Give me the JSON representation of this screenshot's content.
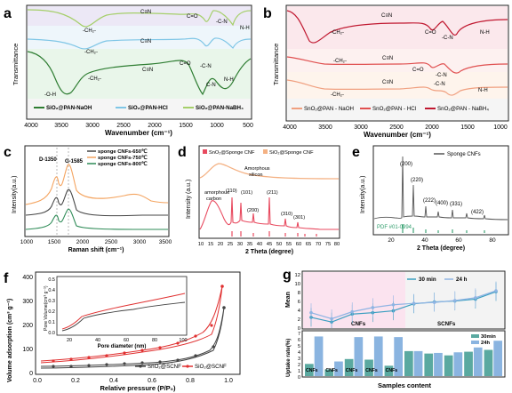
{
  "panel_a": {
    "letter": "a",
    "ylabel": "Transmittance",
    "xlabel": "Wavenumber (cm⁻¹)",
    "xticks": [
      "4000",
      "3500",
      "3000",
      "2500",
      "2000",
      "1500",
      "1000",
      "500"
    ],
    "annot": [
      "-CH₂-",
      "C≡N",
      "C=O",
      "-C-N",
      "N-H",
      "-CH₂-",
      "C≡N",
      "-CH₂-",
      "C≡N",
      "C=O",
      "-C-N",
      "C-N",
      "N-H",
      "-O-H"
    ],
    "legend": [
      "SiO₂@PAN-NaOH",
      "SiO₂@PAN-HCl",
      "SiO₂@PAN-NaBH₄"
    ],
    "colors": [
      "#2e7d32",
      "#7fc6e6",
      "#a5cf6a"
    ]
  },
  "panel_b": {
    "letter": "b",
    "ylabel": "Transmittance",
    "xlabel": "Wavenumber (cm⁻¹)",
    "xticks": [
      "4000",
      "3500",
      "3000",
      "2500",
      "2000",
      "1500",
      "1000"
    ],
    "annot": [
      "-CH₂-",
      "C≡N",
      "C=O",
      "-C-N",
      "N-H",
      "-CH₂-",
      "C≡N",
      "C=O",
      "-C-N",
      "-CH₂-",
      "C≡N",
      "-C-N",
      "N-H"
    ],
    "legend": [
      "SnO₂@PAN - NaOH",
      "SnO₂@PAN - HCl",
      "SnO₂@PAN - NaBH₄"
    ],
    "colors": [
      "#f0a080",
      "#e05050",
      "#c01830"
    ]
  },
  "panel_c": {
    "letter": "c",
    "ylabel": "Intensity(a.u.)",
    "xlabel": "Raman shift (cm⁻¹)",
    "xticks": [
      "1000",
      "1500",
      "2000",
      "2500",
      "3000",
      "3500"
    ],
    "peaks": [
      "D-1350",
      "G-1585"
    ],
    "legend": [
      "sponge  CNFs-650℃",
      "sponge  CNFs-750℃",
      "sponge  CNFs-800℃"
    ],
    "colors": [
      "#444444",
      "#f4a460",
      "#2e8b57"
    ]
  },
  "panel_d": {
    "letter": "d",
    "ylabel": "Intensity (a.u.)",
    "xlabel": "2 Theta (degree)",
    "xticks": [
      "10",
      "15",
      "20",
      "25",
      "30",
      "35",
      "40",
      "45",
      "50",
      "55",
      "60",
      "65",
      "70",
      "75",
      "80"
    ],
    "legend": [
      "SnO₂@Sponge CNF",
      "SiO₂@Sponge CNF"
    ],
    "colors": [
      "#e84a5f",
      "#f4b183"
    ],
    "labels": [
      "Amorphous",
      "silicon",
      "amorphous",
      "carbon",
      "(110)",
      "(101)",
      "(200)",
      "(211)",
      "(310)",
      "(301)"
    ]
  },
  "panel_e": {
    "letter": "e",
    "ylabel": "Intensity(a.u.)",
    "xlabel": "2 Theta (degree)",
    "xticks": [
      "20",
      "40",
      "60",
      "80"
    ],
    "legend": [
      "Sponge CNFs"
    ],
    "pdf": "PDF #01-0994",
    "peaks": [
      "(200)",
      "(220)",
      "(222)",
      "(400)",
      "(331)",
      "(422)"
    ],
    "colors": [
      "#555555",
      "#2e9c6a"
    ]
  },
  "panel_f": {
    "letter": "f",
    "ylabel": "Volume adsorption (cm³ g⁻¹)",
    "xlabel": "Relative pressure (P/P₀)",
    "xticks": [
      "0.0",
      "0.2",
      "0.4",
      "0.6",
      "0.8",
      "1.0"
    ],
    "yticks": [
      "0",
      "100",
      "200",
      "300",
      "400"
    ],
    "legend": [
      "SnO₂@SCNF",
      "SiO₂@SCNF"
    ],
    "colors": [
      "#444444",
      "#e03030"
    ],
    "inset": {
      "ylabel": "Pore Volume(cm³ g⁻¹)",
      "xlabel": "Pore diameter (nm)",
      "xticks": [
        "20",
        "40",
        "60",
        "80",
        "100"
      ],
      "yticks": [
        "0.0",
        "0.1",
        "0.2",
        "0.3",
        "0.4",
        "0.5"
      ]
    }
  },
  "panel_g": {
    "letter": "g",
    "top": {
      "ylabel": "Mean",
      "yticks": [
        "0",
        "2",
        "4",
        "6",
        "8",
        "10",
        "12"
      ],
      "legend": [
        "30 min",
        "24 h"
      ],
      "regions": [
        "CNFs",
        "SCNFs"
      ],
      "series": [
        {
          "name": "30 min",
          "values": [
            2.3,
            1.3,
            3.0,
            3.3,
            3.7,
            5.2,
            5.6,
            5.8,
            6.2,
            7.8
          ]
        },
        {
          "name": "24 h",
          "values": [
            3.3,
            2.0,
            3.5,
            4.4,
            5.0,
            5.3,
            5.5,
            5.9,
            6.5,
            8.0
          ]
        }
      ],
      "colors": [
        "#3a9ec0",
        "#8fb4e3"
      ]
    },
    "bottom": {
      "ylabel": "Uptake rate(%)",
      "yticks": [
        "0",
        "1",
        "2",
        "3",
        "4",
        "5",
        "6",
        "7"
      ],
      "legend": [
        "30min",
        "24h"
      ],
      "labels": [
        "CNFs",
        "CNFs",
        "CNFs",
        "CNFs",
        "CNFs",
        "",
        "",
        "",
        "",
        ""
      ],
      "series": [
        {
          "name": "30min",
          "values": [
            2.0,
            1.1,
            2.8,
            2.7,
            1.7,
            4.1,
            3.7,
            3.4,
            4.0,
            4.3
          ]
        },
        {
          "name": "24h",
          "values": [
            6.5,
            2.4,
            6.4,
            6.5,
            6.4,
            4.1,
            3.8,
            3.9,
            4.7,
            5.8
          ]
        }
      ],
      "colors": [
        "#5aa9a0",
        "#8ab4e0"
      ]
    },
    "xlabel": "Samples content"
  }
}
